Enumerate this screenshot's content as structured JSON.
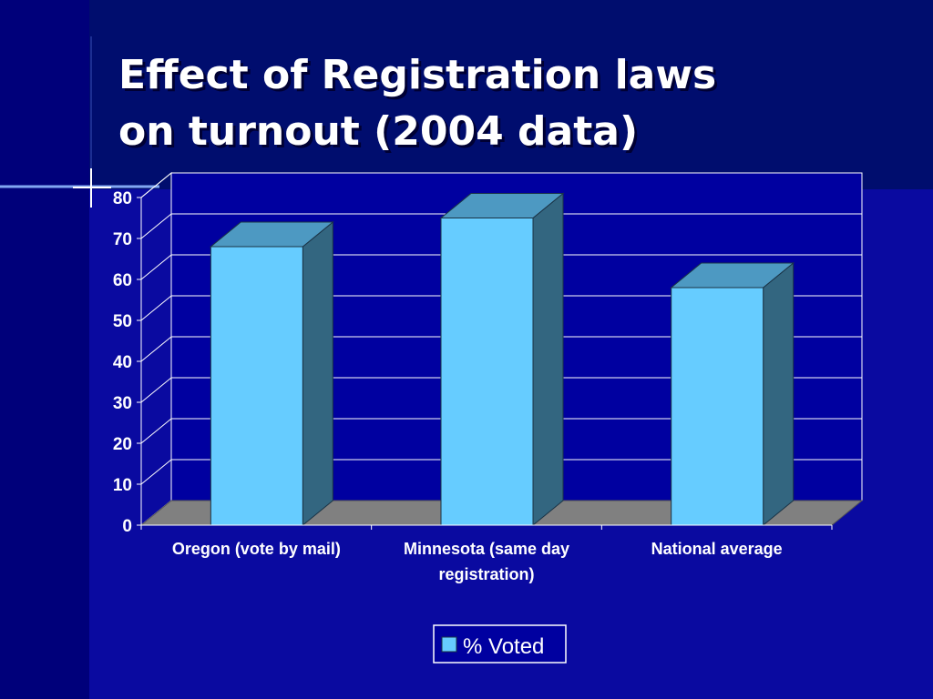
{
  "slide": {
    "title_line1": "Effect of Registration laws",
    "title_line2": "on turnout (2004 data)"
  },
  "colors": {
    "bar_front": "#66ccff",
    "bar_side": "#336680",
    "bar_top": "#4d99c2",
    "floor": "#808080",
    "plot_bg": "#0000a0",
    "gridline": "#ffffff",
    "text": "#ffffff"
  },
  "chart_data": {
    "type": "bar",
    "categories": [
      "Oregon (vote by mail)",
      "Minnesota (same day registration)",
      "National average"
    ],
    "category_lines": [
      [
        "Oregon (vote by mail)"
      ],
      [
        "Minnesota (same day",
        "registration)"
      ],
      [
        "National average"
      ]
    ],
    "series": [
      {
        "name": "% Voted",
        "values": [
          68,
          75,
          58
        ]
      }
    ],
    "title": "Effect of Registration laws on turnout (2004 data)",
    "xlabel": "",
    "ylabel": "",
    "ylim": [
      0,
      80
    ],
    "yticks": [
      0,
      10,
      20,
      30,
      40,
      50,
      60,
      70,
      80
    ],
    "grid": true,
    "legend_position": "bottom",
    "style": "3d-column"
  }
}
